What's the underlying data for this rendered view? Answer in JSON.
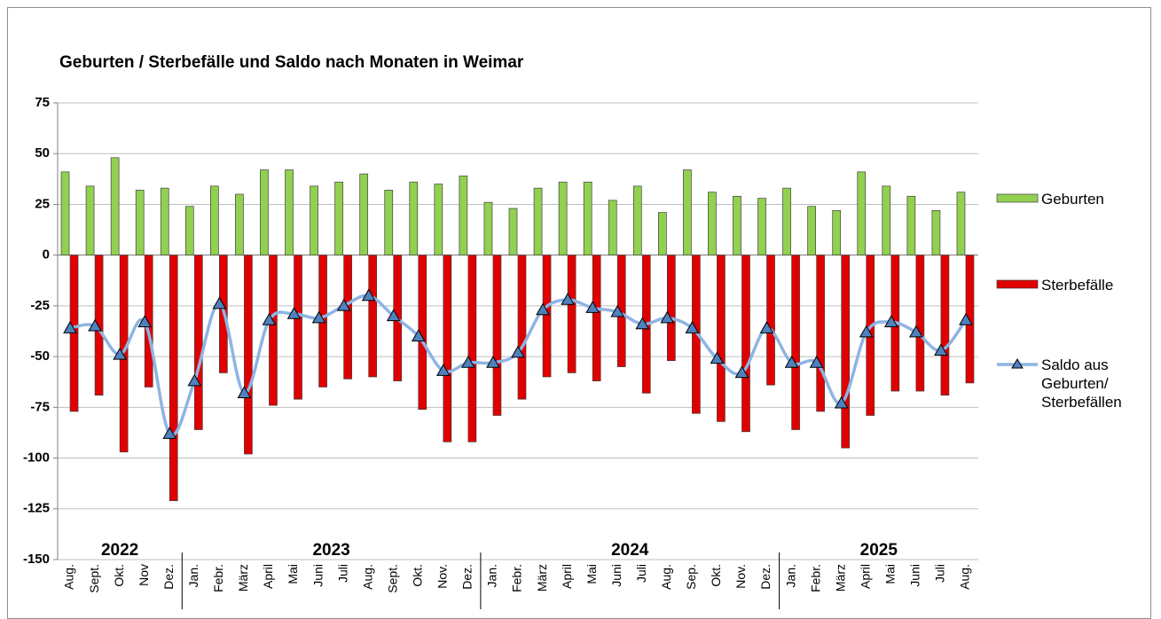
{
  "chart_data": {
    "type": "combo",
    "title": "Geburten / Sterbefälle und Saldo nach Monaten in Weimar",
    "categories": [
      "Aug.",
      "Sept.",
      "Okt.",
      "Nov",
      "Dez.",
      "Jan.",
      "Febr.",
      "März",
      "April",
      "Mai",
      "Juni",
      "Juli",
      "Aug.",
      "Sept.",
      "Okt.",
      "Nov.",
      "Dez.",
      "Jan.",
      "Febr.",
      "März",
      "April",
      "Mai",
      "Juni",
      "Juli",
      "Aug.",
      "Sep.",
      "Okt.",
      "Nov.",
      "Dez.",
      "Jan.",
      "Febr.",
      "März",
      "April",
      "Mai",
      "Juni",
      "Juli",
      "Aug."
    ],
    "year_labels": [
      "2022",
      null,
      null,
      null,
      null,
      "2023",
      null,
      null,
      null,
      null,
      null,
      null,
      null,
      null,
      null,
      null,
      null,
      "2024",
      null,
      null,
      null,
      null,
      null,
      null,
      null,
      null,
      null,
      null,
      null,
      "2025",
      null,
      null,
      null,
      null,
      null,
      null,
      null
    ],
    "series": [
      {
        "name": "Geburten",
        "type": "bar",
        "color": "#92d050",
        "values": [
          41,
          34,
          48,
          32,
          33,
          24,
          34,
          30,
          42,
          42,
          34,
          36,
          40,
          32,
          36,
          35,
          39,
          26,
          23,
          33,
          36,
          36,
          27,
          34,
          21,
          42,
          31,
          29,
          28,
          33,
          24,
          22,
          41,
          34,
          29,
          22,
          31
        ]
      },
      {
        "name": "Sterbefälle",
        "type": "bar",
        "color": "#e00000",
        "values": [
          -77,
          -69,
          -97,
          -65,
          -121,
          -86,
          -58,
          -98,
          -74,
          -71,
          -65,
          -61,
          -60,
          -62,
          -76,
          -92,
          -92,
          -79,
          -71,
          -60,
          -58,
          -62,
          -55,
          -68,
          -52,
          -78,
          -82,
          -87,
          -64,
          -86,
          -77,
          -95,
          -79,
          -67,
          -67,
          -69,
          -63
        ]
      },
      {
        "name": "Saldo aus Geburten/ Sterbefällen",
        "type": "line",
        "color": "#8eb4e3",
        "marker_color": "#4f81bd",
        "values": [
          -36,
          -35,
          -49,
          -33,
          -88,
          -62,
          -24,
          -68,
          -32,
          -29,
          -31,
          -25,
          -20,
          -30,
          -40,
          -57,
          -53,
          -53,
          -48,
          -27,
          -22,
          -26,
          -28,
          -34,
          -31,
          -36,
          -51,
          -58,
          -36,
          -53,
          -53,
          -73,
          -38,
          -33,
          -38,
          -47,
          -32
        ]
      }
    ],
    "ylim": [
      -150,
      75
    ],
    "yticks": [
      -150,
      -125,
      -100,
      -75,
      -50,
      -25,
      0,
      25,
      50,
      75
    ],
    "grid": true
  }
}
